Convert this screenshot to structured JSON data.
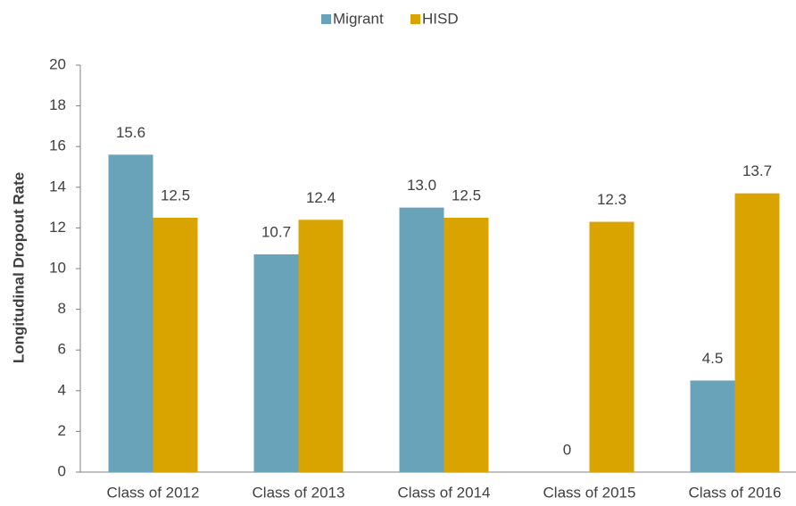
{
  "chart_data": {
    "type": "bar",
    "y_label": "Longitudinal Dropout Rate",
    "categories": [
      "Class of 2012",
      "Class of 2013",
      "Class of 2014",
      "Class of 2015",
      "Class of 2016"
    ],
    "series": [
      {
        "name": "Migrant",
        "color": "#68a3b9",
        "values": [
          15.6,
          10.7,
          13.0,
          0,
          4.5
        ],
        "value_labels": [
          "15.6",
          "10.7",
          "13.0",
          "0",
          "4.5"
        ]
      },
      {
        "name": "HISD",
        "color": "#d9a300",
        "values": [
          12.5,
          12.4,
          12.5,
          12.3,
          13.7
        ]
      }
    ],
    "ylim": [
      0,
      20
    ],
    "yticks": [
      0,
      2,
      4,
      6,
      8,
      10,
      12,
      14,
      16,
      18,
      20
    ],
    "grid": false,
    "legend": "top"
  }
}
